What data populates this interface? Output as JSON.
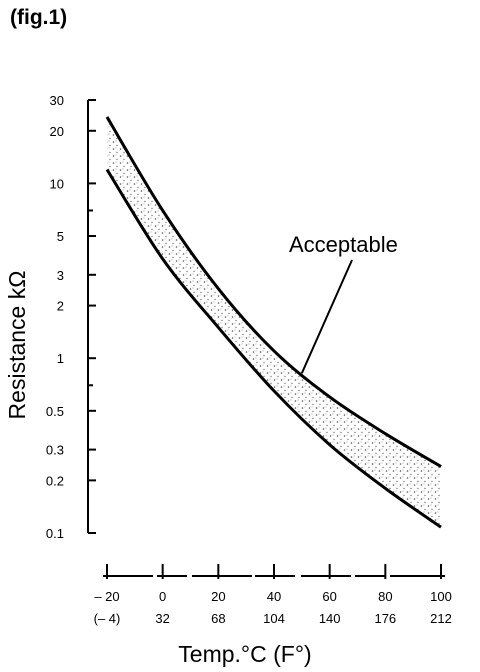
{
  "figure_label": "(fig.1)",
  "chart_data": {
    "type": "area",
    "title": "",
    "xlabel": "Temp.°C (F°)",
    "ylabel": "Resistance kΩ",
    "yscale": "log",
    "xlim": [
      -20,
      100
    ],
    "ylim": [
      0.1,
      30
    ],
    "x_ticks": [
      {
        "c": -20,
        "label_c": "– 20",
        "label_f": "(– 4)"
      },
      {
        "c": 0,
        "label_c": "0",
        "label_f": "32"
      },
      {
        "c": 20,
        "label_c": "20",
        "label_f": "68"
      },
      {
        "c": 40,
        "label_c": "40",
        "label_f": "104"
      },
      {
        "c": 60,
        "label_c": "60",
        "label_f": "140"
      },
      {
        "c": 80,
        "label_c": "80",
        "label_f": "176"
      },
      {
        "c": 100,
        "label_c": "100",
        "label_f": "212"
      }
    ],
    "y_ticks": [
      {
        "value": 30,
        "label": "30"
      },
      {
        "value": 20,
        "label": "20"
      },
      {
        "value": 10,
        "label": "10"
      },
      {
        "value": 5,
        "label": "5"
      },
      {
        "value": 3,
        "label": "3"
      },
      {
        "value": 2,
        "label": "2"
      },
      {
        "value": 1,
        "label": "1"
      },
      {
        "value": 0.5,
        "label": "0.5"
      },
      {
        "value": 0.3,
        "label": "0.3"
      },
      {
        "value": 0.2,
        "label": "0.2"
      },
      {
        "value": 0.1,
        "label": "0.1"
      }
    ],
    "y_minor_ticks": [
      7,
      0.7
    ],
    "x": [
      -20,
      0,
      20,
      40,
      60,
      80,
      100
    ],
    "series": [
      {
        "values": [
          24,
          7,
          2.5,
          1.1,
          0.6,
          0.37,
          0.24
        ]
      },
      {
        "values": [
          12,
          3.7,
          1.5,
          0.65,
          0.32,
          0.18,
          0.108
        ]
      }
    ],
    "annotation": {
      "text": "Acceptable",
      "points_to": {
        "x": 50,
        "y": 0.82
      }
    }
  }
}
